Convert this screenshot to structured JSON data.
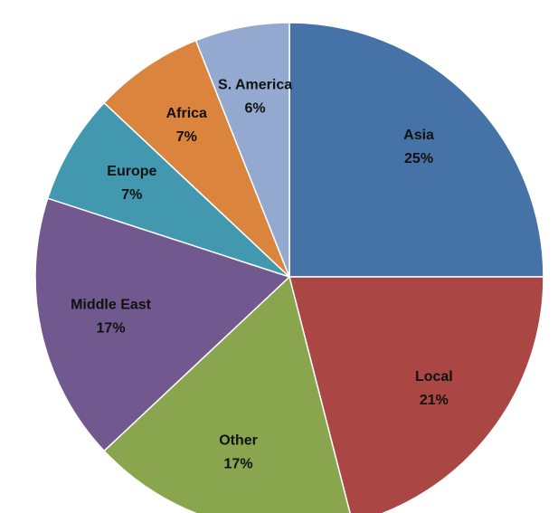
{
  "chart_data": {
    "type": "pie",
    "categories": [
      "Asia",
      "Local",
      "Other",
      "Middle East",
      "Europe",
      "Africa",
      "S. America"
    ],
    "values": [
      25,
      21,
      17,
      17,
      7,
      7,
      6
    ],
    "value_labels": [
      "25%",
      "21%",
      "17%",
      "17%",
      "7%",
      "7%",
      "6%"
    ],
    "colors": [
      "#4572a7",
      "#aa4643",
      "#89a54e",
      "#71588f",
      "#4198af",
      "#db843d",
      "#93a9cf"
    ]
  }
}
